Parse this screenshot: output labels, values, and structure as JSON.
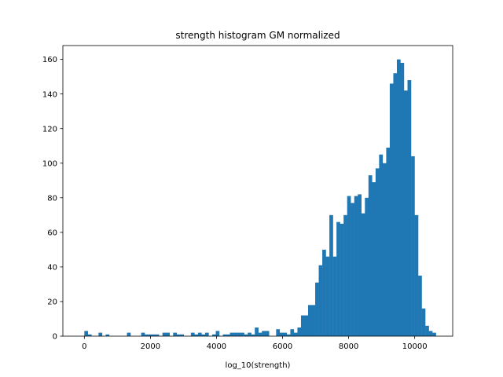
{
  "chart_data": {
    "type": "bar",
    "title": "strength histogram GM normalized",
    "xlabel": "log_10(strength)",
    "ylabel": "",
    "xlim": [
      -650,
      11150
    ],
    "ylim": [
      0,
      168
    ],
    "xticks": [
      0,
      2000,
      4000,
      6000,
      8000,
      10000
    ],
    "xtick_labels": [
      "0",
      "2000",
      "4000",
      "6000",
      "8000",
      "10000"
    ],
    "yticks": [
      0,
      20,
      40,
      60,
      80,
      100,
      120,
      140,
      160
    ],
    "ytick_labels": [
      "0",
      "20",
      "40",
      "60",
      "80",
      "100",
      "120",
      "140",
      "160"
    ],
    "grid": false,
    "legend": "none",
    "color": "#1f77b4",
    "bin_start": 0,
    "bin_width": 107.5,
    "counts": [
      3,
      1,
      0,
      0,
      2,
      0,
      1,
      0,
      0,
      0,
      0,
      0,
      2,
      0,
      0,
      0,
      2,
      1,
      1,
      1,
      1,
      0,
      2,
      2,
      0,
      2,
      1,
      1,
      0,
      0,
      2,
      1,
      2,
      1,
      2,
      0,
      1,
      3,
      0,
      1,
      1,
      2,
      2,
      2,
      2,
      1,
      2,
      1,
      5,
      2,
      3,
      3,
      0,
      0,
      4,
      2,
      2,
      1,
      4,
      2,
      5,
      12,
      12,
      18,
      18,
      31,
      41,
      50,
      46,
      70,
      46,
      66,
      65,
      70,
      81,
      77,
      81,
      82,
      71,
      80,
      93,
      89,
      97,
      105,
      100,
      109,
      146,
      152,
      160,
      158,
      142,
      148,
      104,
      70,
      35,
      16,
      6,
      3,
      2
    ]
  }
}
